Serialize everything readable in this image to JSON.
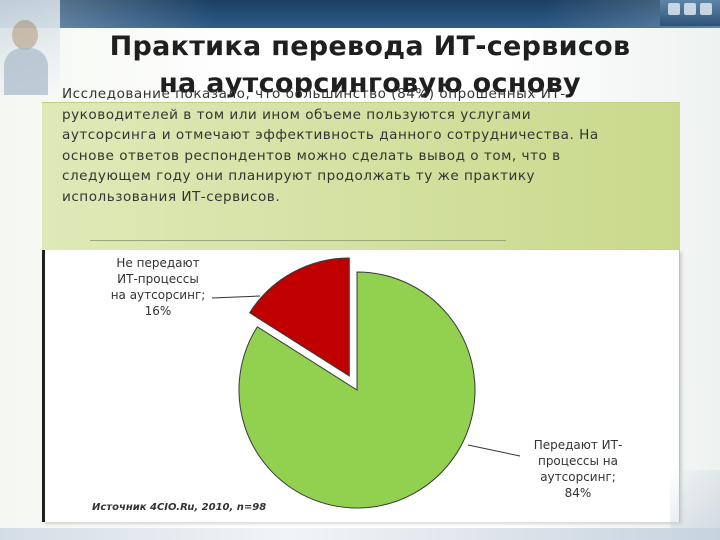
{
  "title": {
    "line1": "Практика перевода ИТ-сервисов",
    "line2": "на аутсорсинговую основу"
  },
  "description": {
    "lines": [
      "Исследование показало, что большинство (84%) опрошенных ИТ-",
      "руководителей в том или ином объеме пользуются услугами",
      "аутсорсинга и отмечают эффективность данного сотрудничества. На",
      "основе ответов респондентов можно сделать вывод о том, что в",
      "следующем году они планируют продолжать ту же практику",
      "использования ИТ-сервисов."
    ]
  },
  "chart_data": {
    "type": "pie",
    "slices": [
      {
        "value": 84,
        "label_lines": [
          "Передают ИТ-",
          "процессы на",
          "аутсорсинг;",
          "84%"
        ],
        "color": "#92d050"
      },
      {
        "value": 16,
        "label_lines": [
          "Не передают",
          "ИТ-процессы",
          "на аутсорсинг;",
          "16%"
        ],
        "color": "#c00000"
      }
    ],
    "source": "Источник 4CIO.Ru, 2010, n=98",
    "legend": "none"
  },
  "colors": {
    "header_bar": "#1b3f63",
    "desc_box": "#d6e3a6",
    "title_text": "#1f1f1f"
  }
}
